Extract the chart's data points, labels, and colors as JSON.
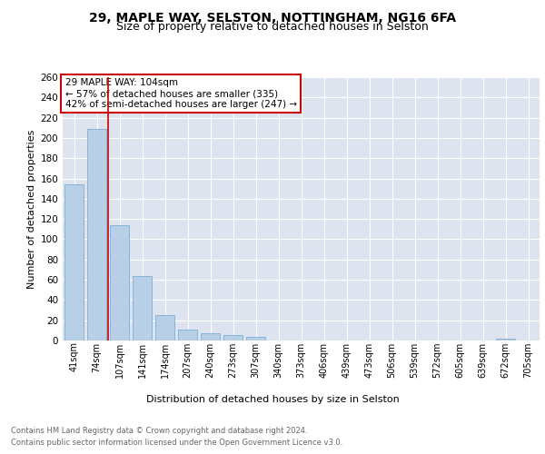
{
  "title1": "29, MAPLE WAY, SELSTON, NOTTINGHAM, NG16 6FA",
  "title2": "Size of property relative to detached houses in Selston",
  "xlabel": "Distribution of detached houses by size in Selston",
  "ylabel": "Number of detached properties",
  "bar_labels": [
    "41sqm",
    "74sqm",
    "107sqm",
    "141sqm",
    "174sqm",
    "207sqm",
    "240sqm",
    "273sqm",
    "307sqm",
    "340sqm",
    "373sqm",
    "406sqm",
    "439sqm",
    "473sqm",
    "506sqm",
    "539sqm",
    "572sqm",
    "605sqm",
    "639sqm",
    "672sqm",
    "705sqm"
  ],
  "bar_values": [
    154,
    209,
    114,
    64,
    25,
    11,
    7,
    5,
    4,
    0,
    0,
    0,
    0,
    0,
    0,
    0,
    0,
    0,
    0,
    2,
    0
  ],
  "bar_color": "#b8cfe8",
  "bar_edge_color": "#7aadd4",
  "annotation_title": "29 MAPLE WAY: 104sqm",
  "annotation_line1": "← 57% of detached houses are smaller (335)",
  "annotation_line2": "42% of semi-detached houses are larger (247) →",
  "annotation_box_color": "#ffffff",
  "annotation_box_edge_color": "#cc0000",
  "ylim": [
    0,
    260
  ],
  "yticks": [
    0,
    20,
    40,
    60,
    80,
    100,
    120,
    140,
    160,
    180,
    200,
    220,
    240,
    260
  ],
  "fig_bg_color": "#ffffff",
  "plot_bg_color": "#dde4ef",
  "footer_line1": "Contains HM Land Registry data © Crown copyright and database right 2024.",
  "footer_line2": "Contains public sector information licensed under the Open Government Licence v3.0.",
  "ref_line_color": "#cc0000",
  "grid_color": "#ffffff",
  "title1_fontsize": 10,
  "title2_fontsize": 9,
  "ylabel_fontsize": 8,
  "xlabel_fontsize": 8,
  "tick_fontsize": 7,
  "footer_fontsize": 6,
  "annotation_fontsize": 7.5
}
